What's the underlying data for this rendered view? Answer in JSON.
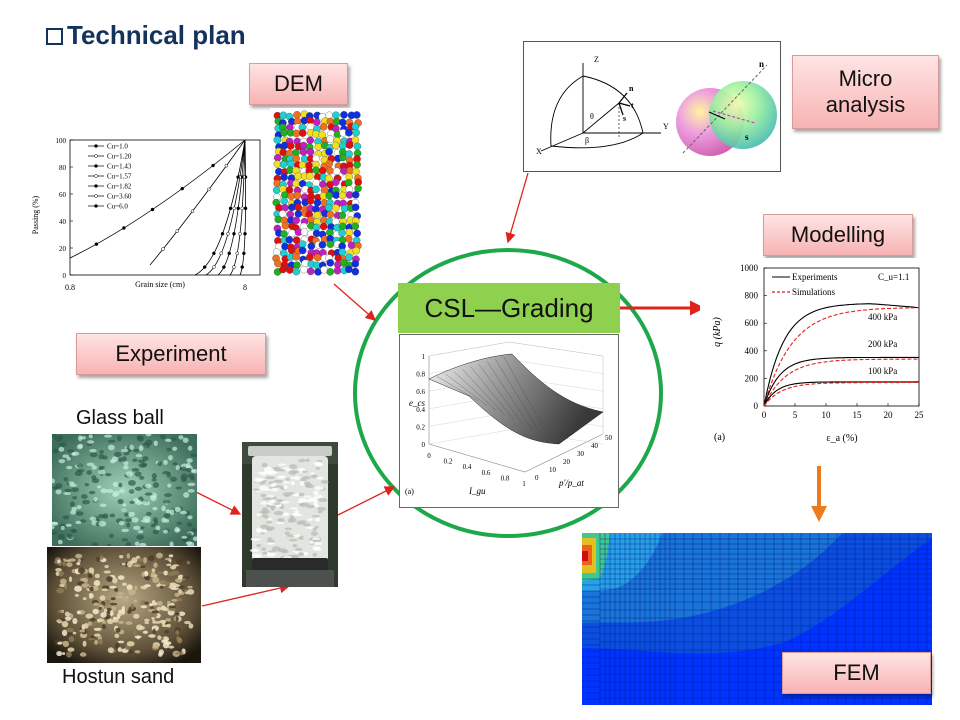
{
  "title": "Technical plan",
  "labels": {
    "dem": "DEM",
    "micro": "Micro\nanalysis",
    "modelling": "Modelling",
    "experiment": "Experiment",
    "fem": "FEM",
    "csl": "CSL—Grading",
    "glass_ball": "Glass ball",
    "hostun_sand": "Hostun sand"
  },
  "dem_chart": {
    "ylabel": "Passing (%)",
    "xlabel": "Grain size (cm)",
    "x_ticks": [
      "0.8",
      "8"
    ],
    "y_ticks": [
      "0",
      "20",
      "40",
      "60",
      "80",
      "100"
    ],
    "legend": [
      "Cu=1.0",
      "Cu=1.20",
      "Cu=1.43",
      "Cu=1.57",
      "Cu=1.82",
      "Cu=3.60",
      "Cu=6.0"
    ]
  },
  "micro_chart": {
    "axes": [
      "Z",
      "Y",
      "X"
    ],
    "symbols": [
      "θ",
      "β",
      "n",
      "t",
      "s"
    ]
  },
  "csl_chart": {
    "zlabel": "e_cs",
    "xlabel": "I_gu",
    "ylabel": "p'/p_at",
    "panel": "(a)",
    "z_ticks": [
      "0",
      "0.2",
      "0.4",
      "0.6",
      "0.8",
      "1"
    ],
    "x_ticks": [
      "0",
      "0.2",
      "0.4",
      "0.6",
      "0.8",
      "1"
    ],
    "y_ticks": [
      "0",
      "10",
      "20",
      "30",
      "40",
      "50"
    ]
  },
  "modelling_chart": {
    "legend": [
      "Experiments",
      "Simulations"
    ],
    "cu_label": "C_u=1.1",
    "panel": "(a)",
    "ylabel": "q (kPa)",
    "xlabel": "ε_a (%)",
    "curve_labels": [
      "400 kPa",
      "200 kPa",
      "100 kPa"
    ],
    "x_ticks": [
      "0",
      "5",
      "10",
      "15",
      "20",
      "25"
    ],
    "y_ticks": [
      "0",
      "200",
      "400",
      "600",
      "800",
      "1000"
    ]
  },
  "colors": {
    "title": "#13335c",
    "tag_fill": "#f9c7c7",
    "csl_fill": "#8fd04f",
    "circle": "#1da84a",
    "arrow_red": "#e0231c",
    "arrow_orange": "#ee7a1e"
  }
}
